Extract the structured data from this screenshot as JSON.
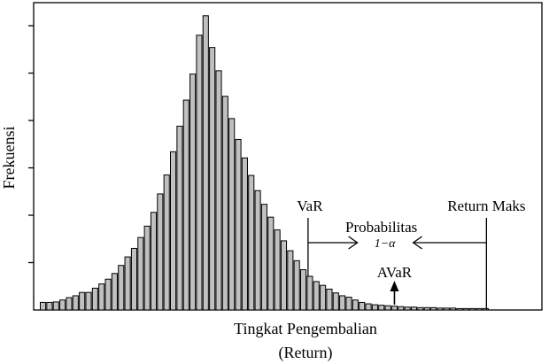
{
  "chart_data": {
    "type": "bar",
    "title": "",
    "xlabel": "Tingkat Pengembalian",
    "xlabel_line2": "(Return)",
    "ylabel": "Frekuensi",
    "x_ticks_shown": false,
    "y_ticks_shown": true,
    "y_tick_label_text_shown": false,
    "grid": false,
    "values": [
      1.6,
      1.6,
      1.7,
      2.1,
      2.6,
      3.0,
      3.7,
      3.7,
      4.6,
      5.5,
      6.5,
      7.7,
      9.4,
      11.2,
      13.0,
      15.3,
      17.7,
      20.6,
      24.5,
      28.5,
      33.4,
      38.8,
      44.3,
      49.8,
      58.0,
      62.1,
      55.4,
      50.5,
      45.1,
      40.4,
      36.0,
      32.1,
      28.4,
      25.2,
      22.3,
      19.6,
      16.9,
      14.6,
      12.5,
      10.4,
      8.5,
      7.1,
      6.0,
      5.2,
      4.4,
      3.6,
      3.0,
      2.7,
      2.1,
      1.6,
      1.3,
      1.1,
      1.0,
      0.9,
      0.8,
      0.7,
      0.6,
      0.6,
      0.5,
      0.5,
      0.5,
      0.4,
      0.4,
      0.4,
      0.3,
      0.3,
      0.3,
      0.3,
      0.3
    ],
    "ylim": [
      0,
      63
    ],
    "y_ticks": [
      10,
      20,
      30,
      40,
      50,
      60
    ],
    "bar_color": "#c0c0c0",
    "annotations": {
      "var_label": "VaR",
      "var_bar_index": 41,
      "max_label": "Return Maks",
      "max_bar_index": 68,
      "prob_label": "Probabilitas",
      "prob_value": "1−α",
      "avar_label": "AVaR",
      "avar_bar_index": 54
    }
  }
}
